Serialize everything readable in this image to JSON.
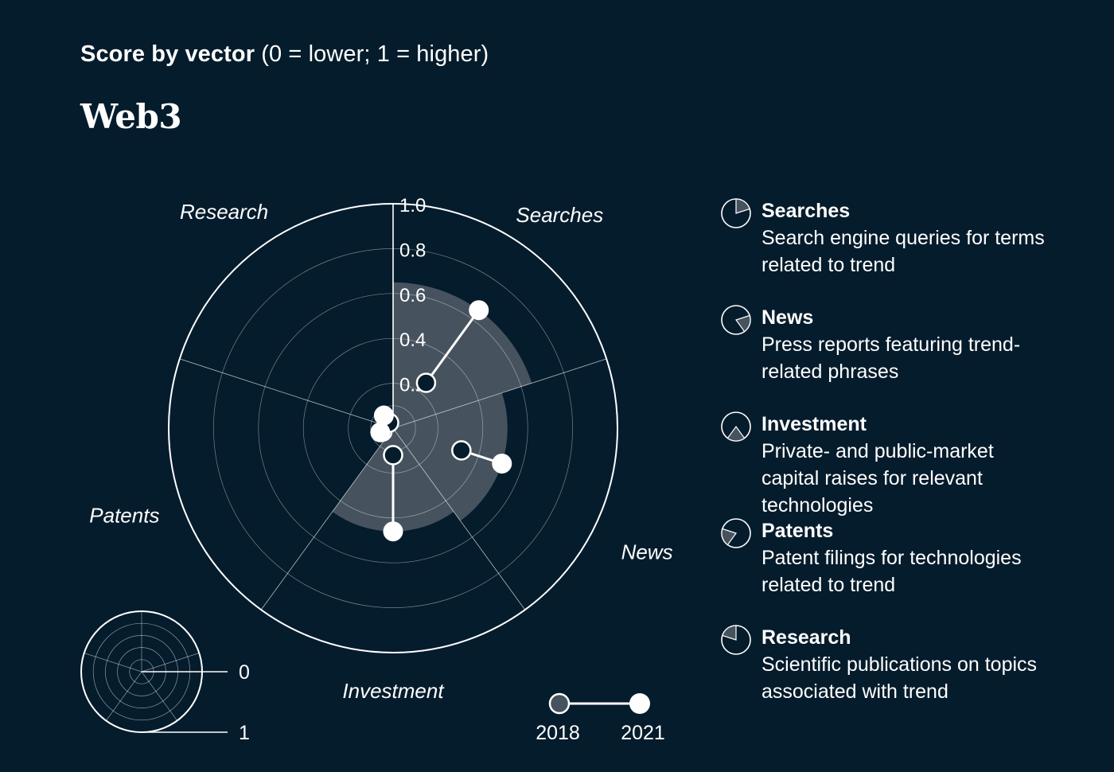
{
  "header": {
    "bold": "Score by vector",
    "rest": "(0 = lower; 1 = higher)"
  },
  "subject": "Web3",
  "colors": {
    "background": "#051C2C",
    "foreground": "#ffffff",
    "fill": "#46535F",
    "marker2018": "#46535F"
  },
  "chart_data": {
    "type": "radar",
    "title": "Score by vector (0 = lower; 1 = higher)",
    "subtitle": "Web3",
    "r_range": [
      0,
      1
    ],
    "ticks": [
      0.2,
      0.4,
      0.6,
      0.8,
      1.0
    ],
    "tick_labels": [
      "0.2",
      "0.4",
      "0.6",
      "0.8",
      "1.0"
    ],
    "categories": [
      "Searches",
      "News",
      "Investment",
      "Patents",
      "Research"
    ],
    "series": [
      {
        "name": "2018",
        "values": [
          0.25,
          0.32,
          0.12,
          0.05,
          0.03
        ]
      },
      {
        "name": "2021",
        "values": [
          0.65,
          0.51,
          0.46,
          0.06,
          0.07
        ]
      }
    ],
    "scale_key": {
      "inner": "0",
      "outer": "1"
    },
    "year_legend": [
      "2018",
      "2021"
    ]
  },
  "descriptions": [
    {
      "icon": "searches-wedge-icon",
      "name": "Searches",
      "desc": "Search engine queries for terms related to trend"
    },
    {
      "icon": "news-wedge-icon",
      "name": "News",
      "desc": "Press reports featuring trend-related phrases"
    },
    {
      "icon": "investment-wedge-icon",
      "name": "Investment",
      "desc": "Private- and public-market capital raises for relevant technologies"
    },
    {
      "icon": "patents-wedge-icon",
      "name": "Patents",
      "desc": "Patent filings for technologies related to trend"
    },
    {
      "icon": "research-wedge-icon",
      "name": "Research",
      "desc": "Scientific publications on topics associated with trend"
    }
  ]
}
